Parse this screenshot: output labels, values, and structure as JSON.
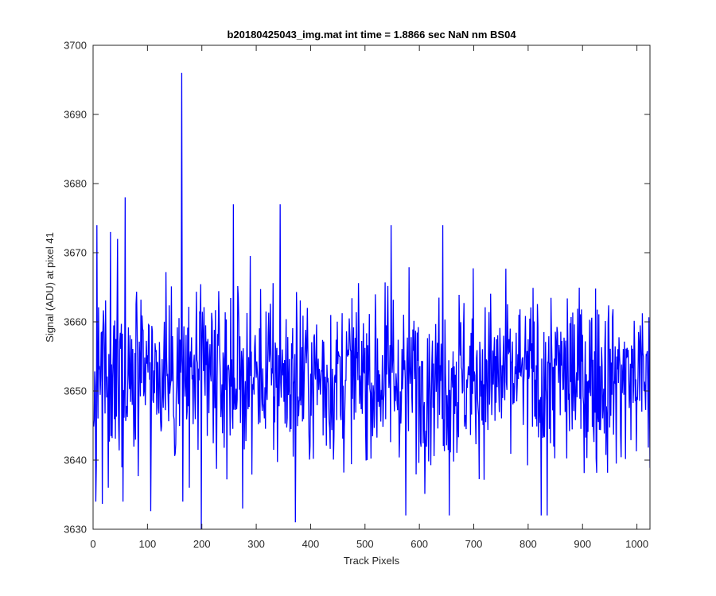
{
  "chart_data": {
    "type": "line",
    "title": "b20180425043_img.mat int time = 1.8866 sec  NaN nm BS04",
    "xlabel": "Track Pixels",
    "ylabel": "Signal (ADU) at pixel 41",
    "xlim": [
      0,
      1024
    ],
    "ylim": [
      3630,
      3700
    ],
    "xticks": [
      0,
      100,
      200,
      300,
      400,
      500,
      600,
      700,
      800,
      900,
      1000
    ],
    "yticks": [
      3630,
      3640,
      3650,
      3660,
      3670,
      3680,
      3690,
      3700
    ],
    "grid": false,
    "legend": "none",
    "series": [
      {
        "color": "#0000ff",
        "points_note_x_start": 1,
        "n_points": 1024,
        "mean": 3652,
        "std": 6.2,
        "spikes": [
          {
            "x": 5,
            "y": 3634
          },
          {
            "x": 7,
            "y": 3674
          },
          {
            "x": 28,
            "y": 3636
          },
          {
            "x": 32,
            "y": 3673
          },
          {
            "x": 45,
            "y": 3672
          },
          {
            "x": 55,
            "y": 3634
          },
          {
            "x": 59,
            "y": 3678
          },
          {
            "x": 163,
            "y": 3696
          },
          {
            "x": 165,
            "y": 3634
          },
          {
            "x": 177,
            "y": 3636
          },
          {
            "x": 199,
            "y": 3630
          },
          {
            "x": 258,
            "y": 3677
          },
          {
            "x": 275,
            "y": 3633
          },
          {
            "x": 344,
            "y": 3677
          },
          {
            "x": 372,
            "y": 3631
          },
          {
            "x": 548,
            "y": 3674
          },
          {
            "x": 575,
            "y": 3632
          },
          {
            "x": 643,
            "y": 3674
          },
          {
            "x": 655,
            "y": 3632
          },
          {
            "x": 824,
            "y": 3632
          },
          {
            "x": 835,
            "y": 3632
          }
        ]
      }
    ]
  }
}
